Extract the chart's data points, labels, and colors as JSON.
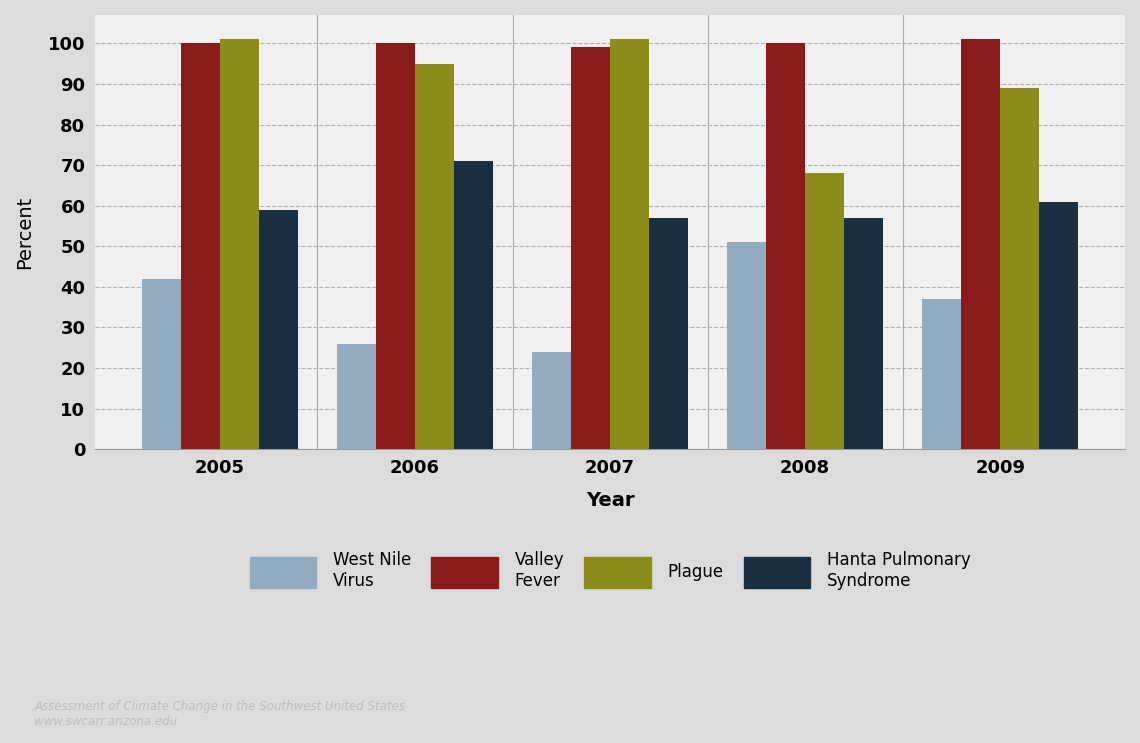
{
  "years": [
    2005,
    2006,
    2007,
    2008,
    2009
  ],
  "west_nile": [
    42,
    26,
    24,
    51,
    37
  ],
  "valley_fever": [
    100,
    100,
    99,
    100,
    101
  ],
  "plague": [
    101,
    95,
    101,
    68,
    89
  ],
  "hanta": [
    59,
    71,
    57,
    57,
    61
  ],
  "colors": {
    "west_nile": "#92ABBF",
    "valley_fever": "#8B1A1A",
    "plague": "#8B8C1A",
    "hanta": "#1A3040"
  },
  "legend_labels": {
    "west_nile": "West Nile\nVirus",
    "valley_fever": "Valley\nFever",
    "plague": "Plague",
    "hanta": "Hanta Pulmonary\nSyndrome"
  },
  "ylabel": "Percent",
  "xlabel": "Year",
  "ylim": [
    0,
    107
  ],
  "yticks": [
    0,
    10,
    20,
    30,
    40,
    50,
    60,
    70,
    80,
    90,
    100
  ],
  "fig_bg_color": "#DCDCDC",
  "plot_bg_color": "#F0F0F0",
  "watermark_line1": "Assessment of Climate Change in the Southwest United States",
  "watermark_line2": "www.swcarr.arizona.edu",
  "axis_label_fontsize": 14,
  "tick_fontsize": 13,
  "legend_fontsize": 12
}
